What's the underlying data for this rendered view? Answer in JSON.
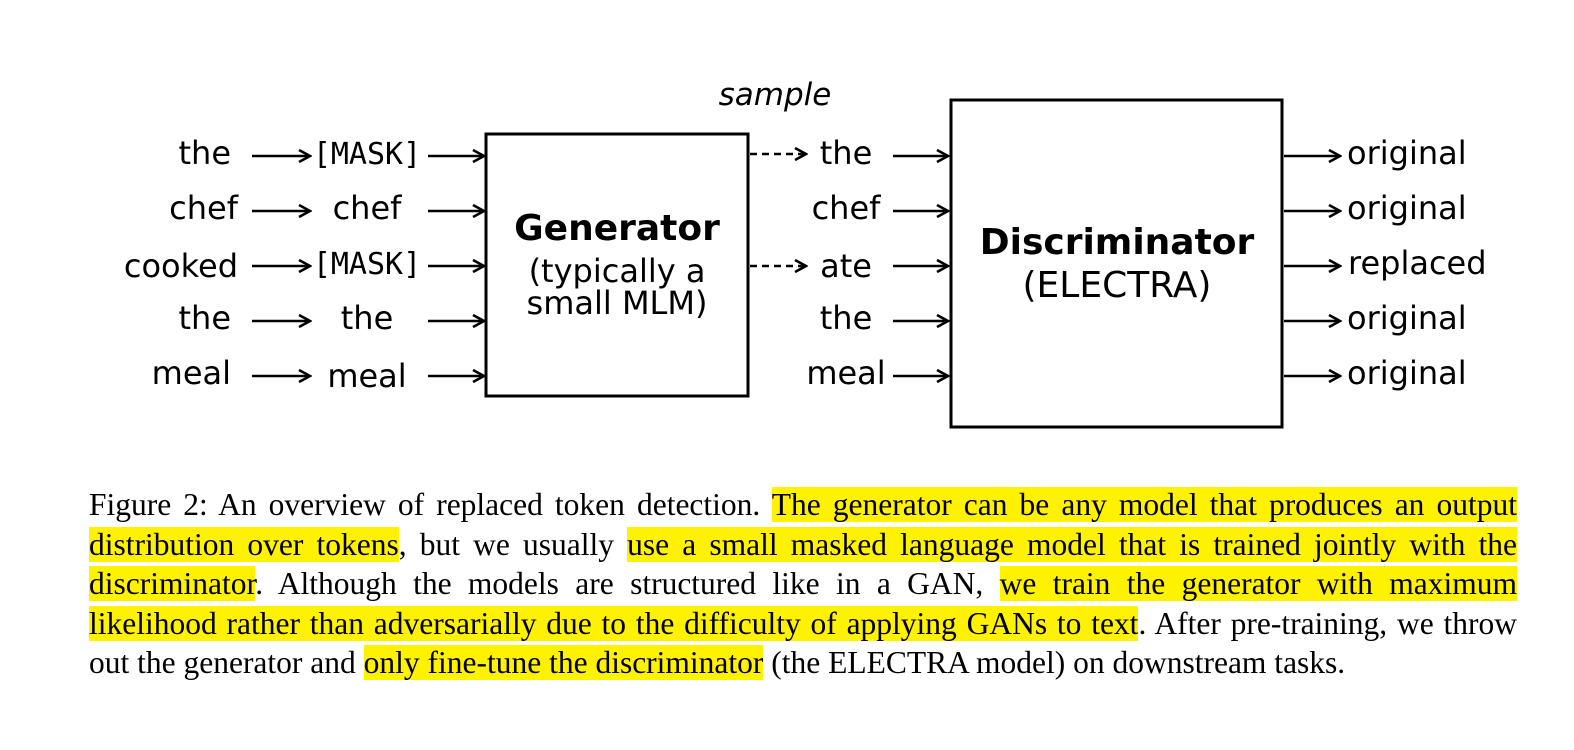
{
  "figure": {
    "sample_label": "sample",
    "input_tokens": [
      "the",
      "chef",
      "cooked",
      "the",
      "meal"
    ],
    "masked_tokens": [
      "[MASK]",
      "chef",
      "[MASK]",
      "the",
      "meal"
    ],
    "generator": {
      "title": "Generator",
      "subtitle_line1": "(typically a",
      "subtitle_line2": "small MLM)"
    },
    "sampled_tokens": [
      "the",
      "chef",
      "ate",
      "the",
      "meal"
    ],
    "discriminator": {
      "title": "Discriminator",
      "subtitle": "(ELECTRA)"
    },
    "labels": [
      "original",
      "original",
      "replaced",
      "original",
      "original"
    ]
  },
  "caption": {
    "segments": [
      {
        "text": "Figure 2: An overview of replaced token detection. ",
        "highlight": false
      },
      {
        "text": "The generator can be any model that produces an output distribution over tokens",
        "highlight": true
      },
      {
        "text": ", but we usually ",
        "highlight": false
      },
      {
        "text": "use a small masked language model that is trained jointly with the discriminator",
        "highlight": true
      },
      {
        "text": ".  Although the models are structured like in a GAN, ",
        "highlight": false
      },
      {
        "text": "we train the generator with maximum likelihood rather than adversarially due to the difficulty of applying GANs to text",
        "highlight": true
      },
      {
        "text": ".  After pre-training, we throw out the generator and ",
        "highlight": false
      },
      {
        "text": "only fine-tune the discriminator",
        "highlight": true
      },
      {
        "text": " (the ELECTRA model) on downstream tasks.",
        "highlight": false
      }
    ],
    "highlight_color": "#fff200"
  }
}
